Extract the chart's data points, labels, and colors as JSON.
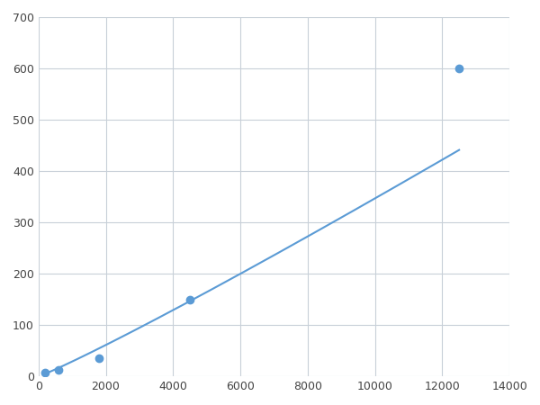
{
  "x": [
    200,
    600,
    1800,
    4500,
    12500
  ],
  "y": [
    8,
    12,
    35,
    150,
    600
  ],
  "line_color": "#5B9BD5",
  "marker_color": "#5B9BD5",
  "marker_size": 6,
  "linewidth": 1.5,
  "xlim": [
    0,
    14000
  ],
  "ylim": [
    0,
    700
  ],
  "xticks": [
    0,
    2000,
    4000,
    6000,
    8000,
    10000,
    12000,
    14000
  ],
  "yticks": [
    0,
    100,
    200,
    300,
    400,
    500,
    600,
    700
  ],
  "grid_color": "#c8d0d8",
  "background_color": "#ffffff",
  "figure_background": "#ffffff"
}
